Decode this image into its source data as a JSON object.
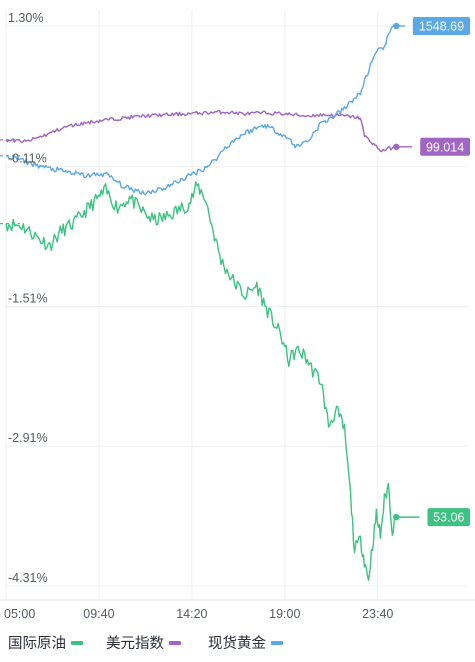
{
  "chart_data": {
    "type": "line",
    "colors": {
      "oil": "#3cc282",
      "usd": "#a065c5",
      "gold": "#5aa9e6",
      "grid": "#eef0f3",
      "axis": "#dfe3e8"
    },
    "y_ticks": [
      "1.30%",
      "-0.11%",
      "-1.51%",
      "-2.91%",
      "-4.31%"
    ],
    "y_tick_values": [
      1.3,
      -0.11,
      -1.51,
      -2.91,
      -4.31
    ],
    "ylim": [
      -4.31,
      1.3
    ],
    "x_ticks": [
      "05:00",
      "09:40",
      "14:20",
      "19:00",
      "23:40"
    ],
    "x_tick_hours": [
      5.0,
      9.6667,
      14.3333,
      19.0,
      23.6667
    ],
    "xlim": [
      5.0,
      28.2
    ],
    "last_hour": 24.6,
    "series": [
      {
        "key": "oil",
        "name": "国际原油",
        "color": "#3cc282",
        "last_label": "53.06",
        "points": [
          [
            5.0,
            -0.68
          ],
          [
            5.8,
            -0.7
          ],
          [
            6.6,
            -0.82
          ],
          [
            7.2,
            -0.9
          ],
          [
            7.8,
            -0.75
          ],
          [
            8.4,
            -0.68
          ],
          [
            9.0,
            -0.55
          ],
          [
            9.5,
            -0.45
          ],
          [
            10.0,
            -0.35
          ],
          [
            10.6,
            -0.52
          ],
          [
            11.2,
            -0.42
          ],
          [
            11.8,
            -0.55
          ],
          [
            12.4,
            -0.65
          ],
          [
            13.0,
            -0.62
          ],
          [
            13.6,
            -0.55
          ],
          [
            14.2,
            -0.48
          ],
          [
            14.6,
            -0.3
          ],
          [
            15.0,
            -0.42
          ],
          [
            15.4,
            -0.75
          ],
          [
            15.8,
            -1.05
          ],
          [
            16.4,
            -1.25
          ],
          [
            17.0,
            -1.4
          ],
          [
            17.6,
            -1.3
          ],
          [
            18.0,
            -1.5
          ],
          [
            18.4,
            -1.65
          ],
          [
            18.8,
            -1.8
          ],
          [
            19.2,
            -2.05
          ],
          [
            19.6,
            -1.95
          ],
          [
            20.0,
            -2.0
          ],
          [
            20.4,
            -2.15
          ],
          [
            20.8,
            -2.25
          ],
          [
            21.2,
            -2.7
          ],
          [
            21.6,
            -2.55
          ],
          [
            22.0,
            -2.75
          ],
          [
            22.3,
            -3.4
          ],
          [
            22.5,
            -3.95
          ],
          [
            22.8,
            -3.85
          ],
          [
            23.0,
            -4.05
          ],
          [
            23.2,
            -4.25
          ],
          [
            23.4,
            -3.9
          ],
          [
            23.6,
            -3.6
          ],
          [
            23.8,
            -3.8
          ],
          [
            24.0,
            -3.45
          ],
          [
            24.2,
            -3.3
          ],
          [
            24.4,
            -3.75
          ],
          [
            24.6,
            -3.62
          ]
        ]
      },
      {
        "key": "usd",
        "name": "美元指数",
        "color": "#a065c5",
        "last_label": "99.014",
        "points": [
          [
            5.0,
            0.16
          ],
          [
            6.0,
            0.14
          ],
          [
            7.0,
            0.21
          ],
          [
            8.0,
            0.29
          ],
          [
            9.0,
            0.33
          ],
          [
            10.0,
            0.36
          ],
          [
            11.0,
            0.38
          ],
          [
            12.0,
            0.4
          ],
          [
            13.0,
            0.41
          ],
          [
            14.0,
            0.42
          ],
          [
            15.0,
            0.43
          ],
          [
            16.0,
            0.44
          ],
          [
            17.0,
            0.42
          ],
          [
            18.0,
            0.43
          ],
          [
            19.0,
            0.42
          ],
          [
            20.0,
            0.4
          ],
          [
            21.0,
            0.41
          ],
          [
            22.0,
            0.4
          ],
          [
            22.8,
            0.38
          ],
          [
            23.0,
            0.2
          ],
          [
            23.4,
            0.13
          ],
          [
            23.8,
            0.05
          ],
          [
            24.2,
            0.07
          ],
          [
            24.6,
            0.09
          ]
        ]
      },
      {
        "key": "gold",
        "name": "现货黄金",
        "color": "#5aa9e6",
        "last_label": "1548.69",
        "points": [
          [
            5.0,
            0.0
          ],
          [
            6.0,
            -0.06
          ],
          [
            7.0,
            -0.12
          ],
          [
            8.0,
            -0.16
          ],
          [
            9.0,
            -0.2
          ],
          [
            10.0,
            -0.18
          ],
          [
            11.0,
            -0.32
          ],
          [
            12.0,
            -0.37
          ],
          [
            13.0,
            -0.32
          ],
          [
            14.0,
            -0.22
          ],
          [
            15.0,
            -0.12
          ],
          [
            15.5,
            -0.04
          ],
          [
            16.0,
            0.08
          ],
          [
            16.5,
            0.16
          ],
          [
            17.0,
            0.23
          ],
          [
            18.0,
            0.31
          ],
          [
            19.0,
            0.2
          ],
          [
            19.6,
            0.09
          ],
          [
            20.2,
            0.16
          ],
          [
            20.8,
            0.32
          ],
          [
            21.5,
            0.4
          ],
          [
            22.0,
            0.47
          ],
          [
            22.4,
            0.56
          ],
          [
            22.8,
            0.62
          ],
          [
            23.0,
            0.75
          ],
          [
            23.3,
            0.9
          ],
          [
            23.6,
            1.03
          ],
          [
            24.0,
            1.1
          ],
          [
            24.3,
            1.25
          ],
          [
            24.6,
            1.3
          ]
        ]
      }
    ]
  }
}
